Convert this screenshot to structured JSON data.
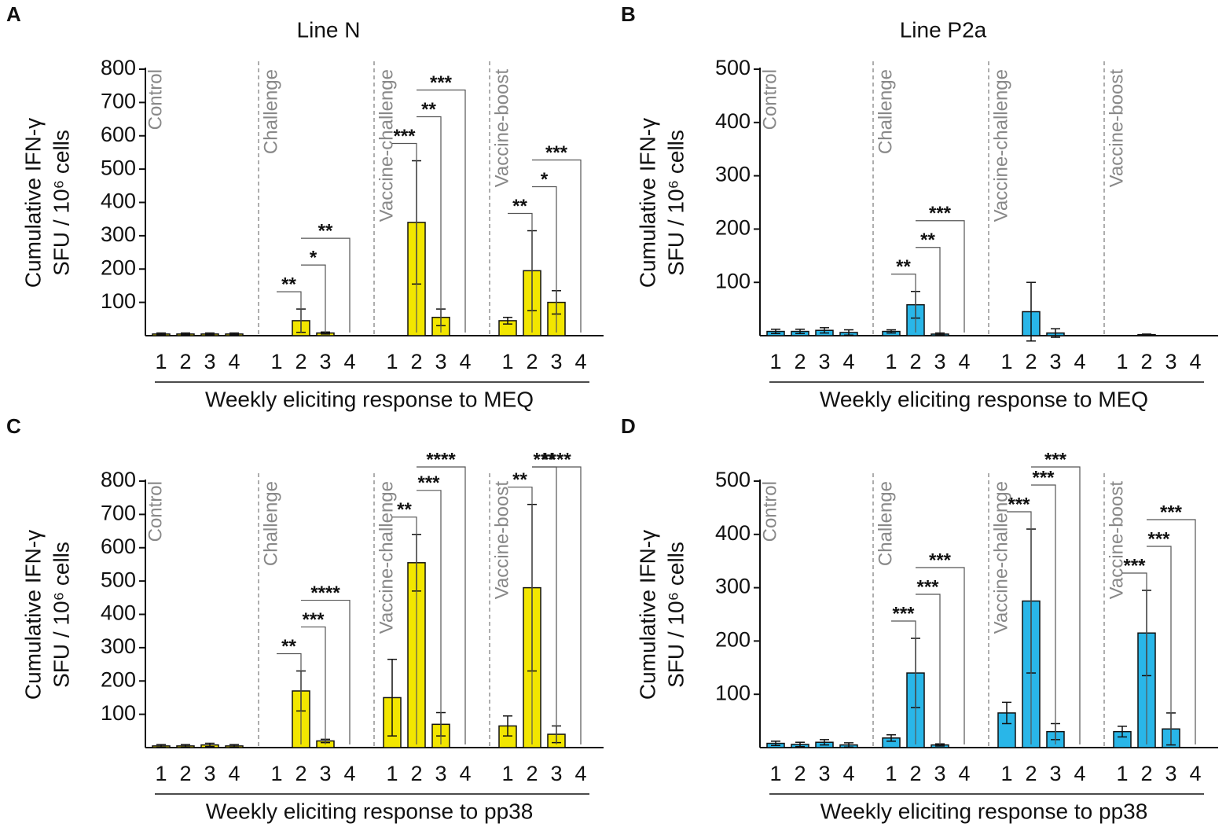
{
  "chart_data": [
    {
      "type": "bar",
      "panel": "A",
      "title": "Line N",
      "ylabel": [
        "Cumulative IFN-γ",
        "SFU / 10⁶ cells"
      ],
      "xlabel": "Weekly eliciting response to MEQ",
      "groups": [
        "Control",
        "Challenge",
        "Vaccine-challenge",
        "Vaccine-boost"
      ],
      "categories": [
        "1",
        "2",
        "3",
        "4",
        "1",
        "2",
        "3",
        "4",
        "1",
        "2",
        "3",
        "4",
        "1",
        "2",
        "3",
        "4"
      ],
      "values": [
        5,
        5,
        5,
        5,
        0,
        45,
        8,
        0,
        0,
        340,
        55,
        0,
        45,
        195,
        100,
        0
      ],
      "errors": [
        3,
        3,
        3,
        3,
        0,
        35,
        3,
        0,
        0,
        185,
        25,
        0,
        10,
        120,
        35,
        0
      ],
      "color": "#f2e600",
      "ylim": [
        0,
        800
      ],
      "yticks": [
        100,
        200,
        300,
        400,
        500,
        600,
        700,
        800
      ],
      "annotations": [
        {
          "text": "**",
          "group": 1,
          "from": 0,
          "to": 1
        },
        {
          "text": "*",
          "group": 1,
          "from": 1,
          "to": 2
        },
        {
          "text": "**",
          "group": 1,
          "from": 1,
          "to": 3
        },
        {
          "text": "***",
          "group": 2,
          "from": 0,
          "to": 1
        },
        {
          "text": "**",
          "group": 2,
          "from": 1,
          "to": 2
        },
        {
          "text": "***",
          "group": 2,
          "from": 1,
          "to": 3
        },
        {
          "text": "**",
          "group": 3,
          "from": 0,
          "to": 1
        },
        {
          "text": "*",
          "group": 3,
          "from": 1,
          "to": 2
        },
        {
          "text": "***",
          "group": 3,
          "from": 1,
          "to": 3
        }
      ]
    },
    {
      "type": "bar",
      "panel": "B",
      "title": "Line P2a",
      "ylabel": [
        "Cumulative IFN-γ",
        "SFU / 10⁶ cells"
      ],
      "xlabel": "Weekly eliciting response to MEQ",
      "groups": [
        "Control",
        "Challenge",
        "Vaccine-challenge",
        "Vaccine-boost"
      ],
      "categories": [
        "1",
        "2",
        "3",
        "4",
        "1",
        "2",
        "3",
        "4",
        "1",
        "2",
        "3",
        "4",
        "1",
        "2",
        "3",
        "4"
      ],
      "values": [
        8,
        8,
        10,
        6,
        8,
        58,
        3,
        0,
        0,
        45,
        5,
        0,
        0,
        2,
        0,
        0
      ],
      "errors": [
        4,
        4,
        5,
        5,
        3,
        25,
        2,
        0,
        0,
        55,
        8,
        0,
        0,
        1,
        0,
        0
      ],
      "color": "#29b6e8",
      "ylim": [
        0,
        500
      ],
      "yticks": [
        100,
        200,
        300,
        400,
        500
      ],
      "annotations": [
        {
          "text": "**",
          "group": 1,
          "from": 0,
          "to": 1
        },
        {
          "text": "**",
          "group": 1,
          "from": 1,
          "to": 2
        },
        {
          "text": "***",
          "group": 1,
          "from": 1,
          "to": 3
        }
      ]
    },
    {
      "type": "bar",
      "panel": "C",
      "ylabel": [
        "Cumulative IFN-γ",
        "SFU / 10⁶ cells"
      ],
      "xlabel": "Weekly eliciting response to pp38",
      "groups": [
        "Control",
        "Challenge",
        "Vaccine-challenge",
        "Vaccine-boost"
      ],
      "categories": [
        "1",
        "2",
        "3",
        "4",
        "1",
        "2",
        "3",
        "4",
        "1",
        "2",
        "3",
        "4",
        "1",
        "2",
        "3",
        "4"
      ],
      "values": [
        5,
        5,
        8,
        5,
        0,
        170,
        20,
        0,
        150,
        555,
        70,
        0,
        65,
        480,
        40,
        0
      ],
      "errors": [
        4,
        4,
        5,
        4,
        0,
        60,
        5,
        0,
        115,
        85,
        35,
        0,
        30,
        250,
        25,
        0
      ],
      "color": "#f2e600",
      "ylim": [
        0,
        800
      ],
      "yticks": [
        100,
        200,
        300,
        400,
        500,
        600,
        700,
        800
      ],
      "annotations": [
        {
          "text": "**",
          "group": 1,
          "from": 0,
          "to": 1
        },
        {
          "text": "***",
          "group": 1,
          "from": 1,
          "to": 2
        },
        {
          "text": "****",
          "group": 1,
          "from": 1,
          "to": 3
        },
        {
          "text": "**",
          "group": 2,
          "from": 0,
          "to": 1
        },
        {
          "text": "***",
          "group": 2,
          "from": 1,
          "to": 2
        },
        {
          "text": "****",
          "group": 2,
          "from": 1,
          "to": 3
        },
        {
          "text": "**",
          "group": 3,
          "from": 0,
          "to": 1
        },
        {
          "text": "***",
          "group": 3,
          "from": 1,
          "to": 2
        },
        {
          "text": "****",
          "group": 3,
          "from": 1,
          "to": 3
        }
      ]
    },
    {
      "type": "bar",
      "panel": "D",
      "ylabel": [
        "Cumulative IFN-γ",
        "SFU / 10⁶ cells"
      ],
      "xlabel": "Weekly eliciting response to pp38",
      "groups": [
        "Control",
        "Challenge",
        "Vaccine-challenge",
        "Vaccine-boost"
      ],
      "categories": [
        "1",
        "2",
        "3",
        "4",
        "1",
        "2",
        "3",
        "4",
        "1",
        "2",
        "3",
        "4",
        "1",
        "2",
        "3",
        "4"
      ],
      "values": [
        8,
        6,
        10,
        5,
        18,
        140,
        5,
        0,
        65,
        275,
        30,
        0,
        30,
        215,
        35,
        0
      ],
      "errors": [
        4,
        4,
        5,
        4,
        6,
        65,
        2,
        0,
        20,
        135,
        15,
        0,
        10,
        80,
        30,
        0
      ],
      "color": "#29b6e8",
      "ylim": [
        0,
        500
      ],
      "yticks": [
        100,
        200,
        300,
        400,
        500
      ],
      "annotations": [
        {
          "text": "***",
          "group": 1,
          "from": 0,
          "to": 1
        },
        {
          "text": "***",
          "group": 1,
          "from": 1,
          "to": 2
        },
        {
          "text": "***",
          "group": 1,
          "from": 1,
          "to": 3
        },
        {
          "text": "***",
          "group": 2,
          "from": 0,
          "to": 1
        },
        {
          "text": "***",
          "group": 2,
          "from": 1,
          "to": 2
        },
        {
          "text": "***",
          "group": 2,
          "from": 1,
          "to": 3
        },
        {
          "text": "***",
          "group": 3,
          "from": 0,
          "to": 1
        },
        {
          "text": "***",
          "group": 3,
          "from": 1,
          "to": 2
        },
        {
          "text": "***",
          "group": 3,
          "from": 1,
          "to": 3
        }
      ]
    }
  ]
}
